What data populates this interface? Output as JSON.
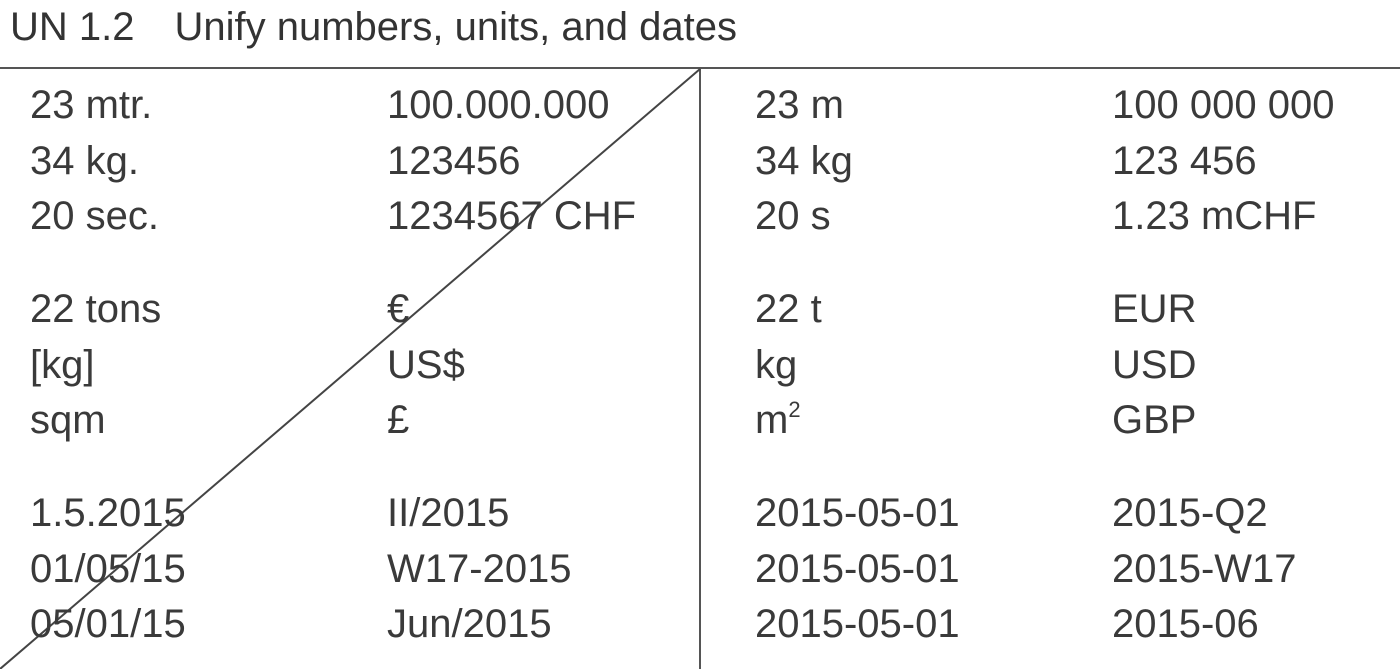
{
  "title": {
    "code": "UN 1.2",
    "text": "Unify numbers, units, and dates"
  },
  "before": {
    "col1": [
      "23 mtr.",
      "34 kg.",
      "20 sec.",
      "22 tons",
      "[kg]",
      "sqm",
      "1.5.2015",
      "01/05/15",
      "05/01/15"
    ],
    "col2": [
      "100.000.000",
      "123456",
      "1234567 CHF",
      "€",
      "US$",
      "£",
      "II/2015",
      "W17-2015",
      "Jun/2015"
    ]
  },
  "after": {
    "col1": [
      "23 m",
      "34 kg",
      "20 s",
      "22 t",
      "kg",
      "m",
      "2015-05-01",
      "2015-05-01",
      "2015-05-01"
    ],
    "col1_sup": "2",
    "col2": [
      "100 000 000",
      "123 456",
      "1.23 mCHF",
      "EUR",
      "USD",
      "GBP",
      "2015-Q2",
      "2015-W17",
      "2015-06"
    ]
  }
}
